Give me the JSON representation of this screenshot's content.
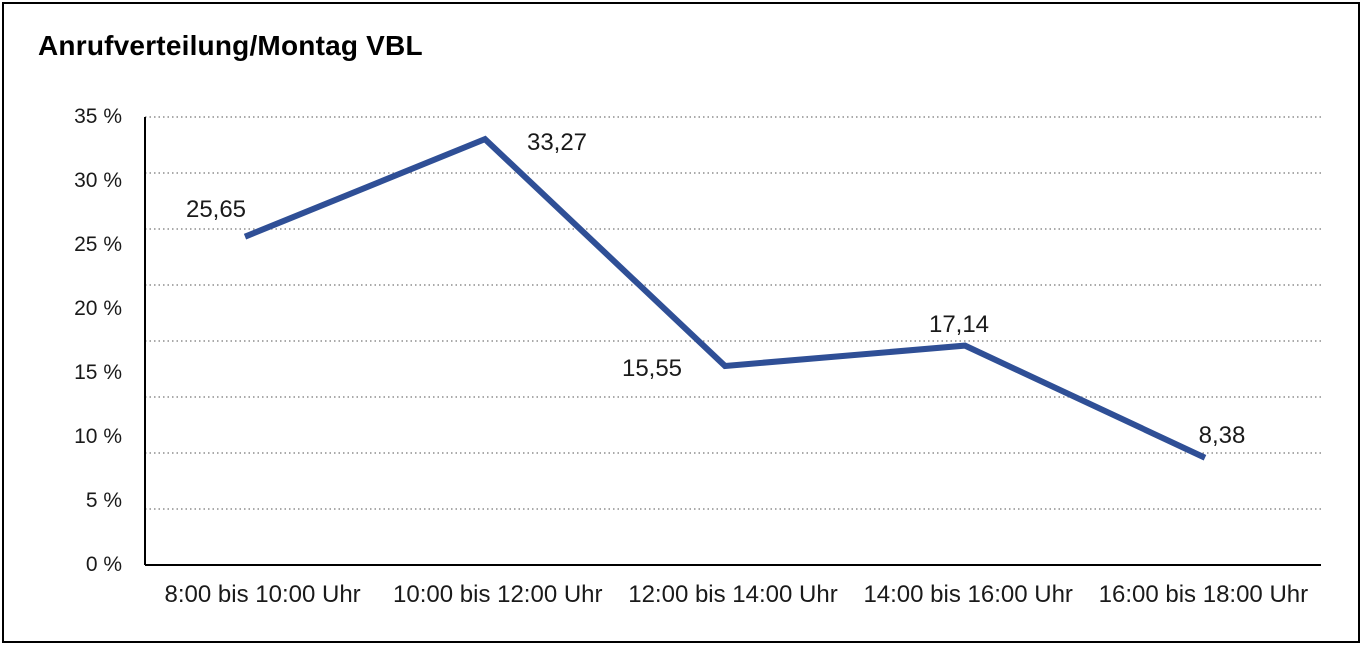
{
  "window": {
    "background": "#ffffff",
    "border_color": "#000000"
  },
  "chart": {
    "title": "Anrufverteilung/Montag VBL"
  },
  "chart_data": {
    "type": "line",
    "title": "Anrufverteilung/Montag VBL",
    "categories": [
      "8:00 bis 10:00 Uhr",
      "10:00 bis 12:00 Uhr",
      "12:00 bis 14:00 Uhr",
      "14:00 bis 16:00 Uhr",
      "16:00 bis 18:00 Uhr"
    ],
    "values": [
      25.65,
      33.27,
      15.55,
      17.14,
      8.38
    ],
    "value_labels": [
      "25,65",
      "33,27",
      "15,55",
      "17,14",
      "8,38"
    ],
    "xlabel": "",
    "ylabel": "",
    "ylim": [
      0,
      35
    ],
    "y_tick_values": [
      35,
      30,
      25,
      20,
      15,
      10,
      5,
      0
    ],
    "y_tick_labels": [
      "35 %",
      "30 %",
      "25 %",
      "20 %",
      "15 %",
      "10 %",
      "5 %",
      "0 %"
    ],
    "grid": "horizontal-dotted",
    "legend": "none",
    "line_color": "#2f4f96",
    "grid_color": "#777777",
    "axis_color": "#000000",
    "text_color": "#1a1a1a"
  }
}
